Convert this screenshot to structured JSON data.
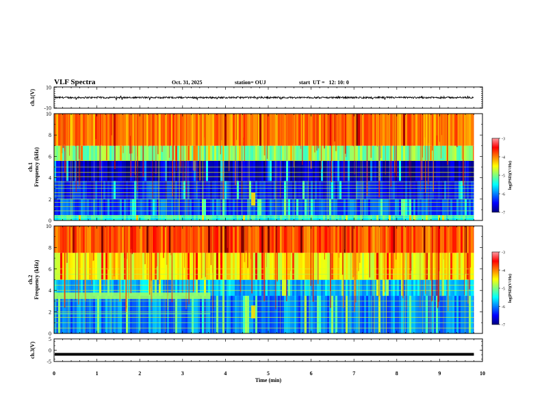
{
  "header": {
    "title": "VLF Spectra",
    "date": "Oct. 31, 2025",
    "station": "station= OUJ",
    "start": "start  UT =   12: 10: 0"
  },
  "colors": {
    "trace": "#000000",
    "colormap": [
      "#00007f",
      "#0000ff",
      "#0080ff",
      "#00ffff",
      "#7fff7f",
      "#ffff00",
      "#ff8000",
      "#ff0000",
      "#7f0000"
    ]
  },
  "chart_data": [
    {
      "type": "line",
      "name": "ch1-waveform",
      "ylabel": "ch.1(V)",
      "ylim": [
        -10,
        10
      ],
      "yticks": [
        "10",
        "-10"
      ],
      "baseline": 0,
      "description_values": {
        "mean": 0,
        "amplitude_approx": 1.5
      }
    },
    {
      "type": "heatmap",
      "name": "ch1-spectrogram",
      "ylabel": "ch.1\nFrequency (kHz)",
      "ylabel_line1": "ch.1",
      "ylabel_line2": "Frequency (kHz)",
      "xlim": [
        0,
        10
      ],
      "data_extent_min": 9.8,
      "ylim": [
        0,
        10
      ],
      "yticks": [
        "0",
        "2",
        "4",
        "6",
        "8",
        "10"
      ],
      "colorbar": {
        "label": "log(PSD)(V²/Hz)",
        "ticks": [
          "-3",
          "-4",
          "-5",
          "-6",
          "-7"
        ],
        "range": [
          -7,
          -3
        ]
      },
      "bands_khz": [
        {
          "f_low": 0,
          "f_high": 0.5,
          "level": -5.4
        },
        {
          "f_low": 0.5,
          "f_high": 2,
          "level": -6.2
        },
        {
          "f_low": 2,
          "f_high": 3.7,
          "level": -6.4
        },
        {
          "f_low": 3.7,
          "f_high": 5.6,
          "level": -6.7
        },
        {
          "f_low": 5.6,
          "f_high": 7,
          "level": -5.0
        },
        {
          "f_low": 7,
          "f_high": 10,
          "level": -4.0
        }
      ],
      "lines_khz": [
        0.3,
        0.45,
        0.9,
        1.3,
        1.7,
        2.0,
        2.3,
        2.6,
        3.0,
        3.3,
        3.6,
        4.1,
        4.5,
        5.0,
        5.6
      ],
      "event_time_min": 4.65
    },
    {
      "type": "heatmap",
      "name": "ch2-spectrogram",
      "ylabel": "ch.2\nFrequency (kHz)",
      "ylabel_line1": "ch.2",
      "ylabel_line2": "Frequency (kHz)",
      "xlim": [
        0,
        10
      ],
      "data_extent_min": 9.8,
      "ylim": [
        0,
        10
      ],
      "yticks": [
        "0",
        "2",
        "4",
        "6",
        "8",
        "10"
      ],
      "colorbar": {
        "label": "log(PSD)(V²/Hz)",
        "ticks": [
          "-3",
          "-4",
          "-5",
          "-6",
          "-7"
        ],
        "range": [
          -7,
          -3
        ]
      },
      "bands_khz": [
        {
          "f_low": 0,
          "f_high": 3.5,
          "level": -6.0
        },
        {
          "f_low": 3.5,
          "f_high": 5.0,
          "level": -5.8
        },
        {
          "f_low": 5.0,
          "f_high": 7.5,
          "level": -4.5
        },
        {
          "f_low": 7.5,
          "f_high": 10,
          "level": -3.8
        }
      ],
      "band_3_4khz_until_min": 3.65,
      "lines_khz": [
        0.5,
        1.0,
        1.5,
        2.0,
        2.5,
        3.0,
        4.0,
        4.5,
        5.0,
        5.5,
        6.0
      ],
      "event_time_min": 4.65
    },
    {
      "type": "line",
      "name": "ch3-waveform",
      "ylabel": "ch.3(V)",
      "ylim": [
        -5,
        5
      ],
      "yticks": [
        "5",
        "0",
        "-5"
      ],
      "value": -1.8,
      "xlim": [
        0,
        10
      ],
      "xticks": [
        "0",
        "1",
        "2",
        "3",
        "4",
        "5",
        "6",
        "7",
        "8",
        "9",
        "10"
      ],
      "xlabel": "Time (min)"
    }
  ]
}
